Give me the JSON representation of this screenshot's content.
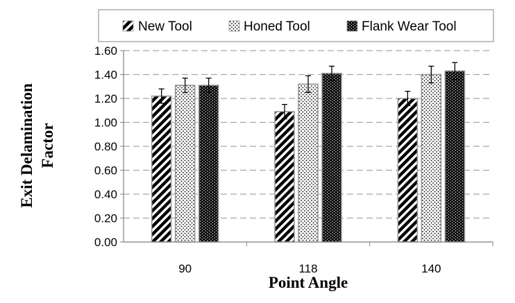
{
  "chart_data": {
    "type": "bar",
    "categories": [
      "90",
      "118",
      "140"
    ],
    "series": [
      {
        "name": "New Tool",
        "values": [
          1.22,
          1.09,
          1.2
        ],
        "errors": [
          0.06,
          0.06,
          0.06
        ],
        "pattern": "diagonal"
      },
      {
        "name": "Honed Tool",
        "values": [
          1.31,
          1.32,
          1.4
        ],
        "errors": [
          0.06,
          0.07,
          0.07
        ],
        "pattern": "dots"
      },
      {
        "name": "Flank Wear Tool",
        "values": [
          1.31,
          1.41,
          1.43
        ],
        "errors": [
          0.06,
          0.06,
          0.07
        ],
        "pattern": "dense"
      }
    ],
    "xlabel": "Point Angle",
    "ylabel_line1": "Exit Delamination",
    "ylabel_line2": "Factor",
    "ylim": [
      0,
      1.6
    ],
    "yticks": [
      "0.00",
      "0.20",
      "0.40",
      "0.60",
      "0.80",
      "1.00",
      "1.20",
      "1.40",
      "1.60"
    ],
    "ytick_values": [
      0,
      0.2,
      0.4,
      0.6,
      0.8,
      1.0,
      1.2,
      1.4,
      1.6
    ],
    "grid": "horizontal-dashed",
    "legend_position": "top",
    "colors": {
      "bar_fill": "#000000",
      "bar_bg": "#ffffff",
      "bar_border": "#999999",
      "grid": "#a6a6a6",
      "axis": "#808080"
    }
  }
}
